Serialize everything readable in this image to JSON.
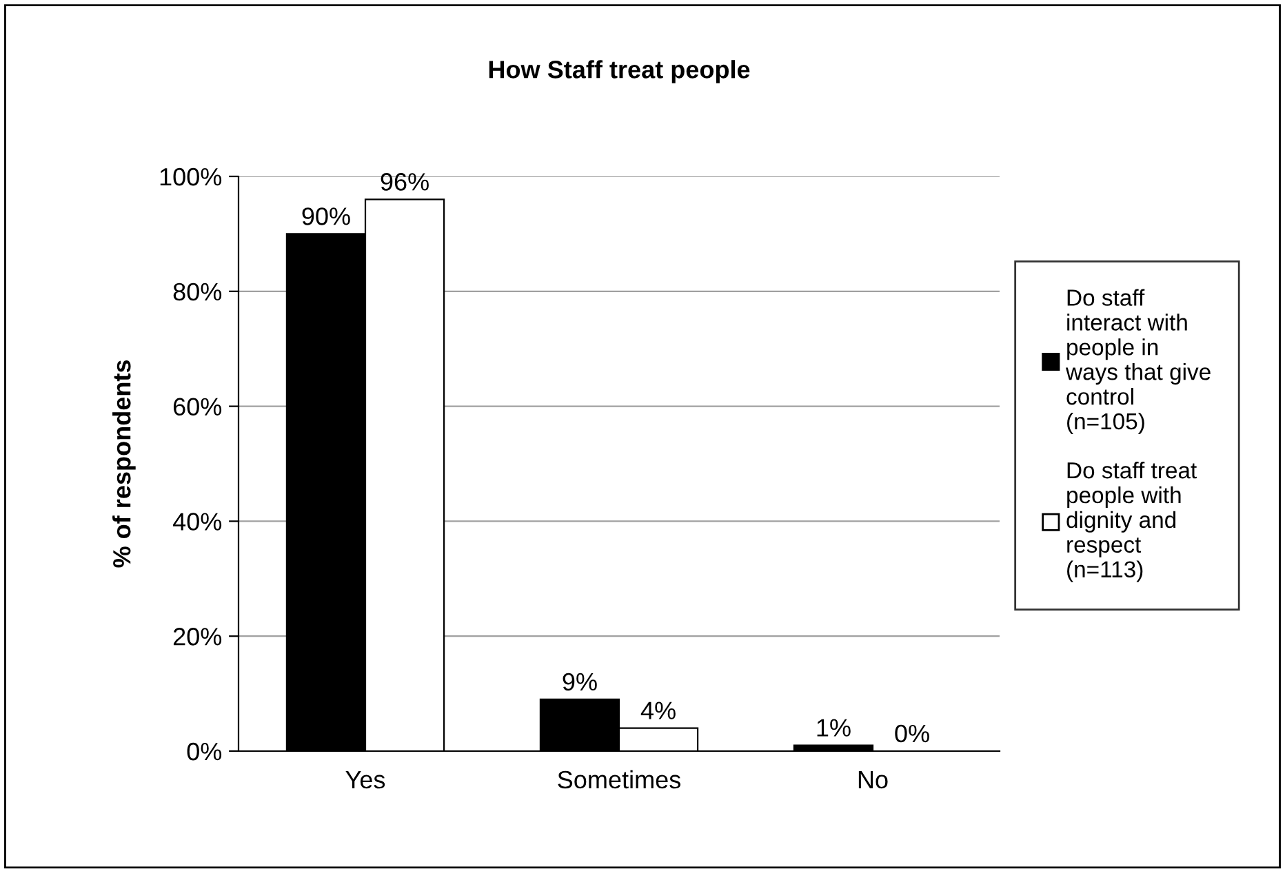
{
  "chart_data": {
    "type": "bar",
    "title": "How Staff treat people",
    "ylabel": "% of respondents",
    "categories": [
      "Yes",
      "Sometimes",
      "No"
    ],
    "series": [
      {
        "name": "Do staff\ninteract with\npeople in\nways that give\ncontrol\n(n=105)",
        "color": "#000000",
        "values": [
          90,
          9,
          1
        ]
      },
      {
        "name": "Do staff treat\npeople with\ndignity and\nrespect\n(n=113)",
        "color": "#ffffff",
        "values": [
          96,
          4,
          0
        ]
      }
    ],
    "ylim": [
      0,
      100
    ],
    "yticks": [
      {
        "value": 0,
        "label": "0%"
      },
      {
        "value": 20,
        "label": "20%"
      },
      {
        "value": 40,
        "label": "40%"
      },
      {
        "value": 60,
        "label": "60%"
      },
      {
        "value": 80,
        "label": "80%"
      },
      {
        "value": 100,
        "label": "100%"
      }
    ],
    "grid": "y",
    "legend": "right",
    "value_labels": [
      [
        "90%",
        "9%",
        "1%"
      ],
      [
        "96%",
        "4%",
        "0%"
      ]
    ]
  }
}
